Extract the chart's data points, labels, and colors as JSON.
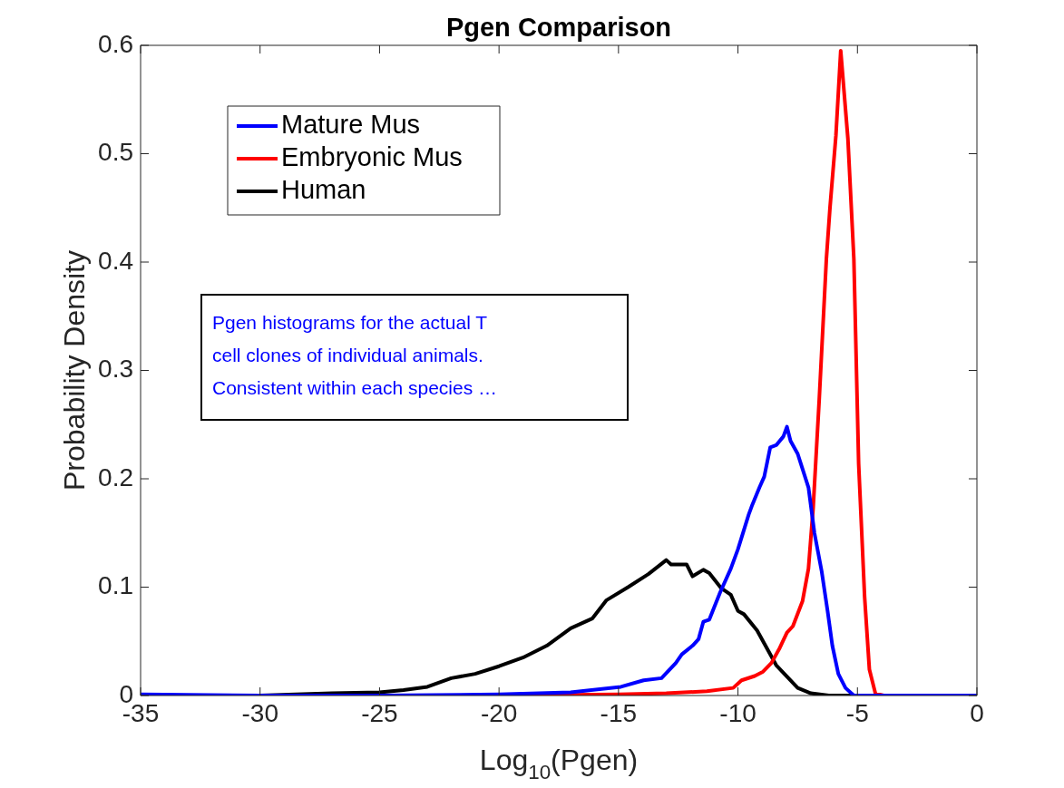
{
  "chart_data": {
    "type": "line",
    "title": "Pgen Comparison",
    "xlabel": "Log$_{10}$(Pgen)",
    "ylabel": "Probability Density",
    "annotations": [
      "Pgen histograms for the actual T\ncell clones of individual animals.\nConsistent within each species …"
    ],
    "xlim": [
      -35,
      0
    ],
    "xticks": [
      -35,
      -30,
      -25,
      -20,
      -15,
      -10,
      -5,
      0
    ],
    "ylim": [
      0,
      0.6
    ],
    "yticks": [
      0,
      0.1,
      0.2,
      0.3,
      0.4,
      0.5,
      0.6
    ],
    "grid": false,
    "legend": "top left",
    "marker": "none",
    "line_style": "solid",
    "series": [
      {
        "name": "Mature Mus",
        "color": "#0000ff",
        "x": [
          -35,
          -30,
          -25,
          -20,
          -17,
          -14.9,
          -13.95,
          -13.2,
          -12.6,
          -12.35,
          -11.9,
          -11.65,
          -11.45,
          -11.2,
          -10.75,
          -10.3,
          -10,
          -9.55,
          -9.4,
          -9.1,
          -8.9,
          -8.65,
          -8.4,
          -8.1,
          -7.95,
          -7.8,
          -7.5,
          -7.05,
          -6.8,
          -6.5,
          -6.25,
          -6.05,
          -5.8,
          -5.5,
          -5.15,
          -3,
          0
        ],
        "values": [
          0.001,
          0,
          0,
          0.001,
          0.003,
          0.008,
          0.014,
          0.016,
          0.03,
          0.038,
          0.046,
          0.052,
          0.068,
          0.07,
          0.095,
          0.117,
          0.135,
          0.167,
          0.176,
          0.192,
          0.202,
          0.229,
          0.231,
          0.239,
          0.248,
          0.235,
          0.223,
          0.192,
          0.15,
          0.115,
          0.078,
          0.046,
          0.02,
          0.007,
          0,
          0,
          0
        ]
      },
      {
        "name": "Embryonic Mus",
        "color": "#ff0000",
        "x": [
          -20,
          -15,
          -13,
          -11.3,
          -10.2,
          -9.85,
          -9.3,
          -8.95,
          -8.6,
          -8.25,
          -7.95,
          -7.7,
          -7.3,
          -7.05,
          -6.85,
          -6.6,
          -6.3,
          -6.15,
          -5.9,
          -5.7,
          -5.4,
          -5.15,
          -4.95,
          -4.7,
          -4.5,
          -4.25,
          -3.9,
          0
        ],
        "values": [
          0,
          0.001,
          0.002,
          0.004,
          0.007,
          0.014,
          0.018,
          0.022,
          0.03,
          0.044,
          0.058,
          0.064,
          0.087,
          0.117,
          0.174,
          0.273,
          0.403,
          0.45,
          0.517,
          0.595,
          0.514,
          0.403,
          0.214,
          0.091,
          0.024,
          0.002,
          0,
          0
        ]
      },
      {
        "name": "Human",
        "color": "#000000",
        "x": [
          -35,
          -30,
          -27,
          -25,
          -24,
          -23,
          -22,
          -21,
          -20,
          -19,
          -18,
          -17,
          -16.1,
          -15.5,
          -14.6,
          -13.75,
          -13,
          -12.8,
          -12.15,
          -11.9,
          -11.45,
          -11.2,
          -10.7,
          -10.3,
          -10,
          -9.75,
          -9.2,
          -8.4,
          -7.5,
          -6.95,
          -6.2,
          0
        ],
        "values": [
          0,
          0,
          0.002,
          0.003,
          0.005,
          0.008,
          0.016,
          0.02,
          0.027,
          0.035,
          0.046,
          0.062,
          0.071,
          0.088,
          0.1,
          0.112,
          0.125,
          0.121,
          0.121,
          0.11,
          0.116,
          0.113,
          0.099,
          0.093,
          0.078,
          0.075,
          0.06,
          0.028,
          0.007,
          0.002,
          0,
          0
        ]
      }
    ]
  }
}
